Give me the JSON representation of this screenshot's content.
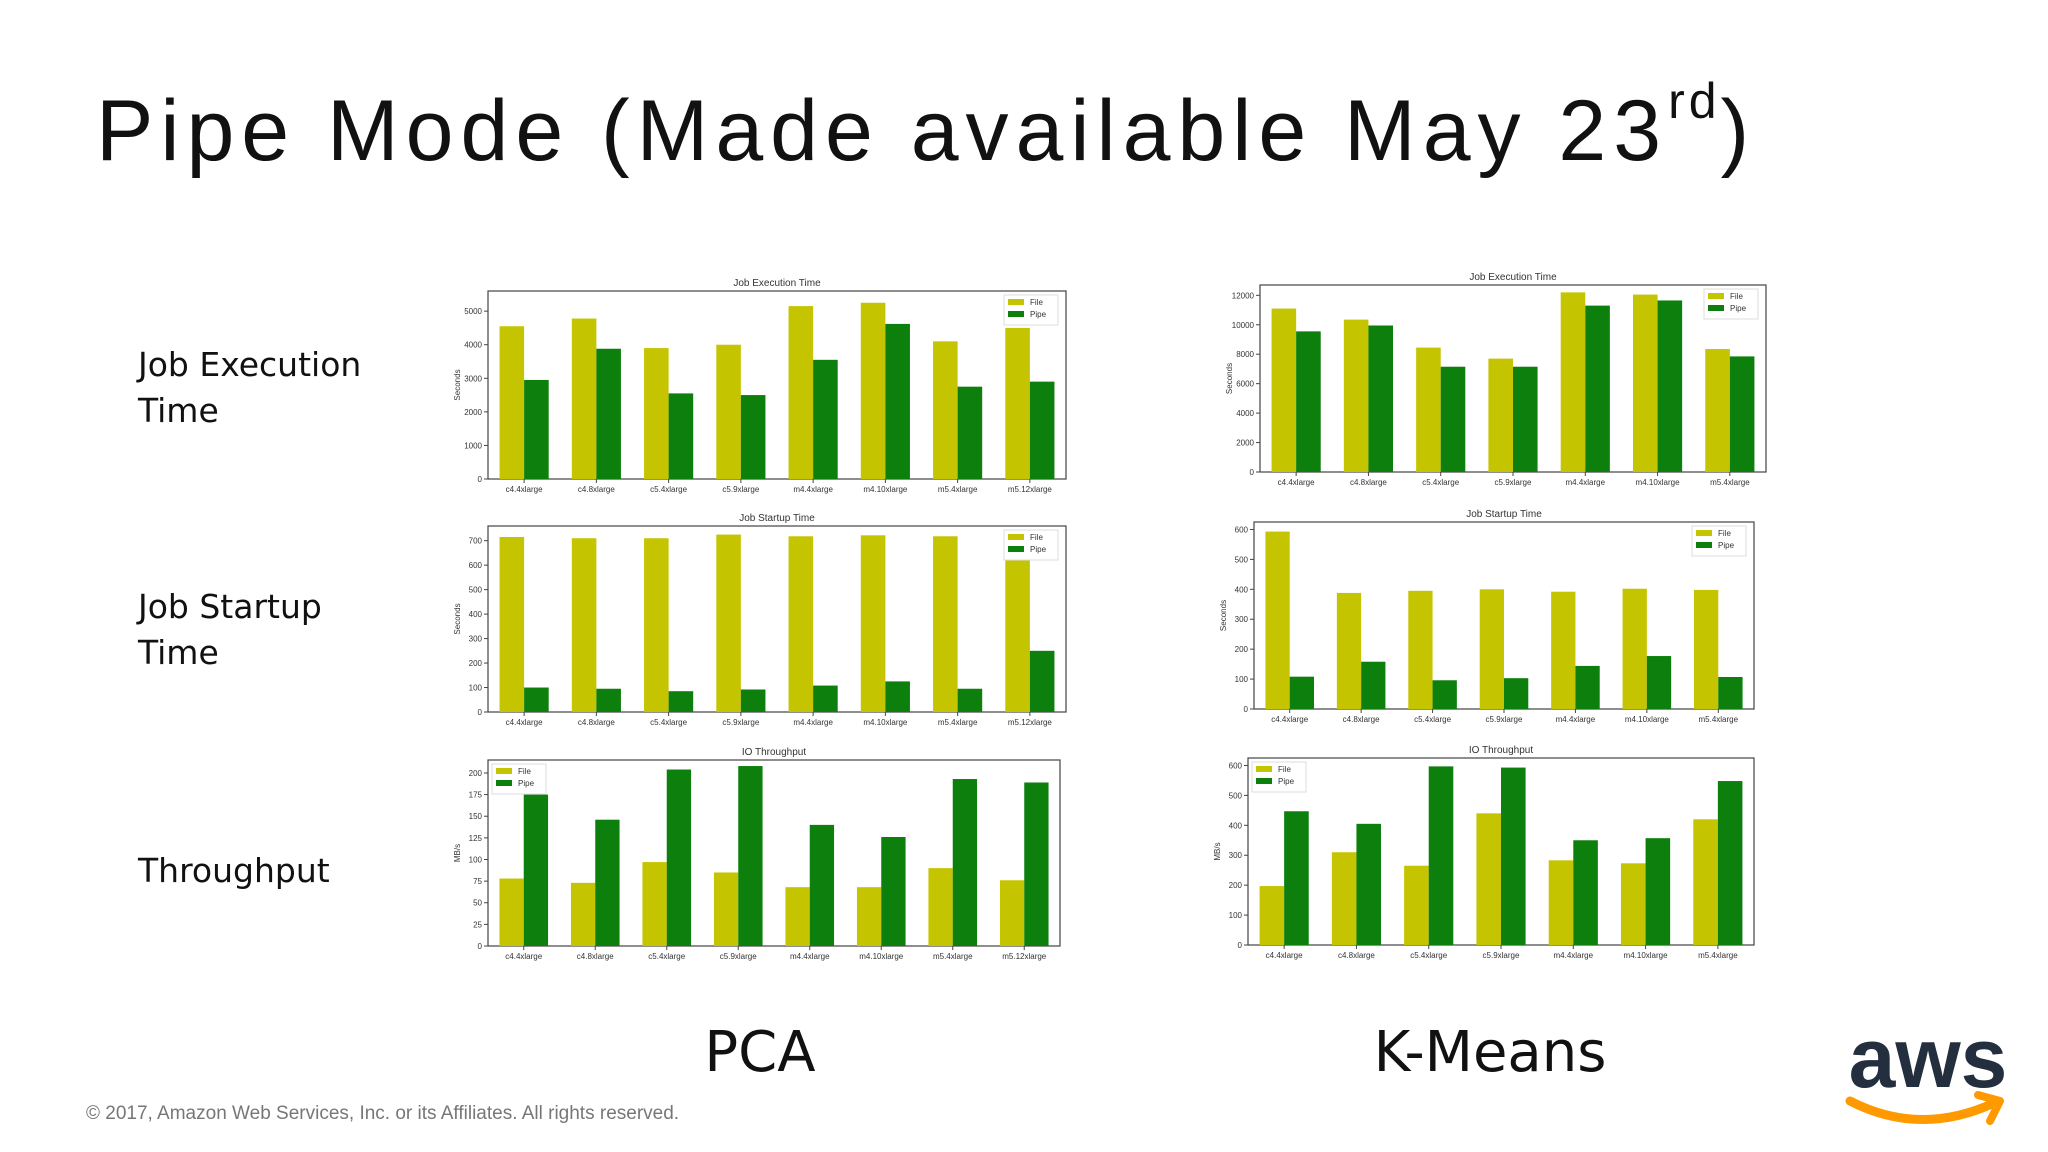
{
  "slide": {
    "title": "Pipe Mode (Made available May 23",
    "title_sup": "rd",
    "title_close": ")",
    "row_labels": {
      "execution": [
        "Job Execution",
        "Time"
      ],
      "startup": [
        "Job Startup",
        "Time"
      ],
      "throughput": "Throughput"
    },
    "column_labels": {
      "pca": "PCA",
      "kmeans": "K-Means"
    },
    "footer": "© 2017, Amazon Web Services, Inc. or its Affiliates. All rights reserved.",
    "logo_icon": "aws-logo-icon",
    "logo_text": "aws"
  },
  "colors": {
    "file": "#c5c400",
    "pipe": "#0d7f0d",
    "logo_text": "#232f3e",
    "logo_smile": "#ff9900"
  },
  "chart_data": [
    {
      "id": "pca-exec",
      "type": "bar",
      "title": "Job Execution Time",
      "ylabel": "Seconds",
      "categories": [
        "c4.4xlarge",
        "c4.8xlarge",
        "c5.4xlarge",
        "c5.9xlarge",
        "m4.4xlarge",
        "m4.10xlarge",
        "m5.4xlarge",
        "m5.12xlarge"
      ],
      "series": [
        {
          "name": "File",
          "values": [
            4550,
            4780,
            3900,
            4000,
            5150,
            5250,
            4100,
            4500
          ]
        },
        {
          "name": "Pipe",
          "values": [
            2950,
            3880,
            2550,
            2500,
            3550,
            4620,
            2750,
            2900
          ]
        }
      ],
      "ylim": [
        0,
        5600
      ],
      "yticks": [
        0,
        1000,
        2000,
        3000,
        4000,
        5000
      ],
      "legend": "top-right",
      "grid": false
    },
    {
      "id": "pca-startup",
      "type": "bar",
      "title": "Job Startup Time",
      "ylabel": "Seconds",
      "categories": [
        "c4.4xlarge",
        "c4.8xlarge",
        "c5.4xlarge",
        "c5.9xlarge",
        "m4.4xlarge",
        "m4.10xlarge",
        "m5.4xlarge",
        "m5.12xlarge"
      ],
      "series": [
        {
          "name": "File",
          "values": [
            715,
            710,
            710,
            725,
            718,
            722,
            718,
            720
          ]
        },
        {
          "name": "Pipe",
          "values": [
            100,
            95,
            85,
            92,
            108,
            125,
            95,
            250
          ]
        }
      ],
      "ylim": [
        0,
        760
      ],
      "yticks": [
        0,
        100,
        200,
        300,
        400,
        500,
        600,
        700
      ],
      "legend": "top-right",
      "grid": false
    },
    {
      "id": "pca-io",
      "type": "bar",
      "title": "IO Throughput",
      "ylabel": "MB/s",
      "categories": [
        "c4.4xlarge",
        "c4.8xlarge",
        "c5.4xlarge",
        "c5.9xlarge",
        "m4.4xlarge",
        "m4.10xlarge",
        "m5.4xlarge",
        "m5.12xlarge"
      ],
      "series": [
        {
          "name": "File",
          "values": [
            78,
            73,
            97,
            85,
            68,
            68,
            90,
            76
          ]
        },
        {
          "name": "Pipe",
          "values": [
            175,
            146,
            204,
            208,
            140,
            126,
            193,
            189
          ]
        }
      ],
      "ylim": [
        0,
        215
      ],
      "yticks": [
        0,
        25,
        50,
        75,
        100,
        125,
        150,
        175,
        200
      ],
      "legend": "top-left",
      "grid": false
    },
    {
      "id": "km-exec",
      "type": "bar",
      "title": "Job Execution Time",
      "ylabel": "Seconds",
      "categories": [
        "c4.4xlarge",
        "c4.8xlarge",
        "c5.4xlarge",
        "c5.9xlarge",
        "m4.4xlarge",
        "m4.10xlarge",
        "m5.4xlarge"
      ],
      "series": [
        {
          "name": "File",
          "values": [
            11100,
            10350,
            8450,
            7700,
            12200,
            12050,
            8350
          ]
        },
        {
          "name": "Pipe",
          "values": [
            9550,
            9950,
            7150,
            7150,
            11300,
            11650,
            7850
          ]
        }
      ],
      "ylim": [
        0,
        12700
      ],
      "yticks": [
        0,
        2000,
        4000,
        6000,
        8000,
        10000,
        12000
      ],
      "legend": "top-right",
      "grid": false
    },
    {
      "id": "km-startup",
      "type": "bar",
      "title": "Job Startup Time",
      "ylabel": "Seconds",
      "categories": [
        "c4.4xlarge",
        "c4.8xlarge",
        "c5.4xlarge",
        "c5.9xlarge",
        "m4.4xlarge",
        "m4.10xlarge",
        "m5.4xlarge"
      ],
      "series": [
        {
          "name": "File",
          "values": [
            593,
            388,
            395,
            400,
            392,
            402,
            398
          ]
        },
        {
          "name": "Pipe",
          "values": [
            108,
            158,
            96,
            103,
            144,
            177,
            107
          ]
        }
      ],
      "ylim": [
        0,
        625
      ],
      "yticks": [
        0,
        100,
        200,
        300,
        400,
        500,
        600
      ],
      "legend": "top-right",
      "grid": false
    },
    {
      "id": "km-io",
      "type": "bar",
      "title": "IO Throughput",
      "ylabel": "MB/s",
      "categories": [
        "c4.4xlarge",
        "c4.8xlarge",
        "c5.4xlarge",
        "c5.9xlarge",
        "m4.4xlarge",
        "m4.10xlarge",
        "m5.4xlarge"
      ],
      "series": [
        {
          "name": "File",
          "values": [
            197,
            310,
            265,
            440,
            283,
            273,
            420
          ]
        },
        {
          "name": "Pipe",
          "values": [
            447,
            405,
            597,
            593,
            350,
            357,
            548
          ]
        }
      ],
      "ylim": [
        0,
        625
      ],
      "yticks": [
        0,
        100,
        200,
        300,
        400,
        500,
        600
      ],
      "legend": "top-left",
      "grid": false
    }
  ]
}
